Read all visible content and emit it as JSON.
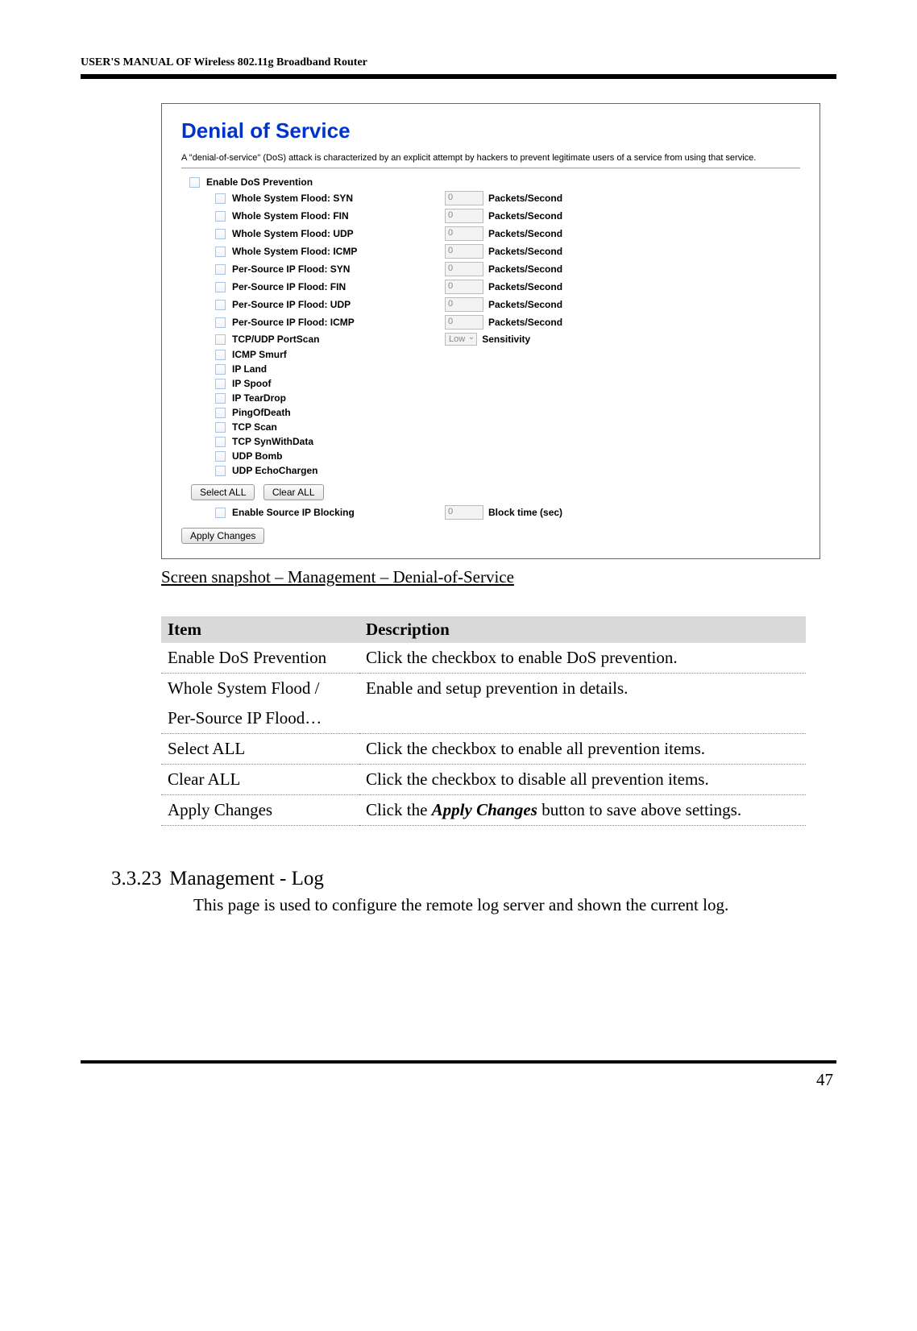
{
  "header": "USER'S MANUAL OF Wireless 802.11g Broadband Router",
  "panel": {
    "title": "Denial of Service",
    "desc": "A \"denial-of-service\" (DoS) attack is characterized by an explicit attempt by hackers to prevent legitimate users of a service from using that service.",
    "master": "Enable DoS Prevention",
    "rows": [
      {
        "label": "Whole System Flood: SYN",
        "val": "0",
        "unit": "Packets/Second"
      },
      {
        "label": "Whole System Flood: FIN",
        "val": "0",
        "unit": "Packets/Second"
      },
      {
        "label": "Whole System Flood: UDP",
        "val": "0",
        "unit": "Packets/Second"
      },
      {
        "label": "Whole System Flood: ICMP",
        "val": "0",
        "unit": "Packets/Second"
      },
      {
        "label": "Per-Source IP Flood: SYN",
        "val": "0",
        "unit": "Packets/Second"
      },
      {
        "label": "Per-Source IP Flood: FIN",
        "val": "0",
        "unit": "Packets/Second"
      },
      {
        "label": "Per-Source IP Flood: UDP",
        "val": "0",
        "unit": "Packets/Second"
      },
      {
        "label": "Per-Source IP Flood: ICMP",
        "val": "0",
        "unit": "Packets/Second"
      }
    ],
    "portscan": {
      "label": "TCP/UDP PortScan",
      "sel": "Low",
      "unit": "Sensitivity"
    },
    "simple": [
      "ICMP Smurf",
      "IP Land",
      "IP Spoof",
      "IP TearDrop",
      "PingOfDeath",
      "TCP Scan",
      "TCP SynWithData",
      "UDP Bomb",
      "UDP EchoChargen"
    ],
    "btn_select": "Select ALL",
    "btn_clear": "Clear ALL",
    "source_block": {
      "label": "Enable Source IP Blocking",
      "val": "0",
      "unit": "Block time (sec)"
    },
    "btn_apply": "Apply Changes"
  },
  "caption": "Screen snapshot – Management – Denial-of-Service",
  "table": {
    "h1": "Item",
    "h2": "Description",
    "rows": [
      {
        "c1": "Enable DoS Prevention",
        "c2": "Click the checkbox to enable DoS prevention."
      },
      {
        "c1": "Whole System Flood / Per-Source IP Flood…",
        "c2": "Enable and setup prevention in details."
      },
      {
        "c1": "Select ALL",
        "c2": "Click the checkbox to enable all prevention items."
      },
      {
        "c1": "Clear ALL",
        "c2": "Click the checkbox to disable all prevention items."
      }
    ],
    "apply_row": {
      "c1": "Apply Changes",
      "c2a": "Click the ",
      "c2b": "Apply Changes",
      "c2c": " button to save above settings."
    }
  },
  "section": {
    "num": "3.3.23",
    "title": "Management - Log",
    "body": "This page is used to configure the remote log server and shown the current log."
  },
  "page_num": "47"
}
